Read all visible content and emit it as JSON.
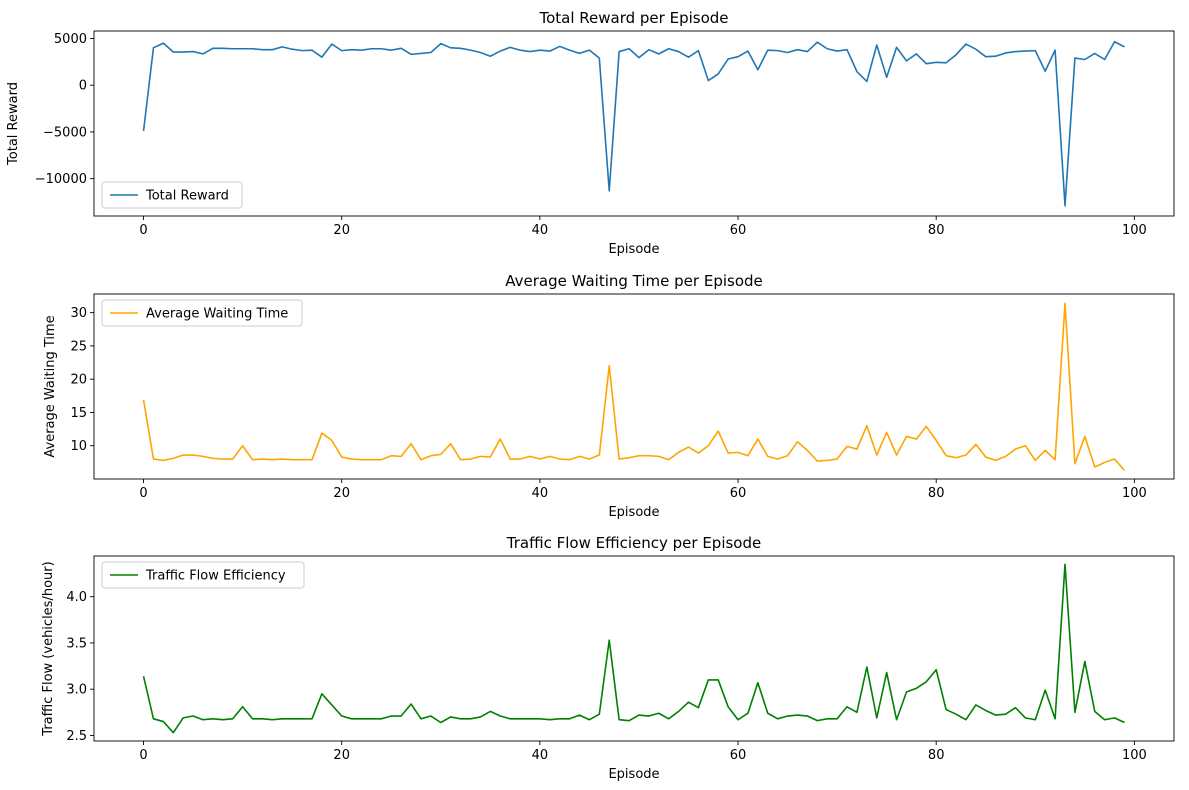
{
  "chart_data": [
    {
      "type": "line",
      "title": "Total Reward per Episode",
      "xlabel": "Episode",
      "ylabel": "Total Reward",
      "xlim": [
        -5,
        104
      ],
      "ylim": [
        -14000,
        5800
      ],
      "xticks": [
        0,
        20,
        40,
        60,
        80,
        100
      ],
      "xtick_labels": [
        "0",
        "20",
        "40",
        "60",
        "80",
        "100"
      ],
      "yticks": [
        -10000,
        -5000,
        0,
        5000
      ],
      "ytick_labels": [
        "−10000",
        "−5000",
        "0",
        "5000"
      ],
      "grid": false,
      "legend_position": "lower-left",
      "series": [
        {
          "name": "Total Reward",
          "color": "#1f77b4",
          "x": [
            0,
            1,
            2,
            3,
            4,
            5,
            6,
            7,
            8,
            9,
            10,
            11,
            12,
            13,
            14,
            15,
            16,
            17,
            18,
            19,
            20,
            21,
            22,
            23,
            24,
            25,
            26,
            27,
            28,
            29,
            30,
            31,
            32,
            33,
            34,
            35,
            36,
            37,
            38,
            39,
            40,
            41,
            42,
            43,
            44,
            45,
            46,
            47,
            48,
            49,
            50,
            51,
            52,
            53,
            54,
            55,
            56,
            57,
            58,
            59,
            60,
            61,
            62,
            63,
            64,
            65,
            66,
            67,
            68,
            69,
            70,
            71,
            72,
            73,
            74,
            75,
            76,
            77,
            78,
            79,
            80,
            81,
            82,
            83,
            84,
            85,
            86,
            87,
            88,
            89,
            90,
            91,
            92,
            93,
            94,
            95,
            96,
            97,
            98,
            99
          ],
          "values": [
            -4900,
            4000,
            4500,
            3550,
            3550,
            3600,
            3350,
            3950,
            3950,
            3900,
            3900,
            3900,
            3800,
            3800,
            4100,
            3850,
            3700,
            3750,
            3000,
            4400,
            3700,
            3800,
            3750,
            3900,
            3900,
            3750,
            3950,
            3300,
            3400,
            3500,
            4450,
            4000,
            3950,
            3750,
            3500,
            3100,
            3650,
            4050,
            3750,
            3600,
            3750,
            3650,
            4150,
            3750,
            3400,
            3750,
            2900,
            -11300,
            3600,
            3900,
            2950,
            3800,
            3350,
            3900,
            3600,
            3000,
            3700,
            500,
            1200,
            2800,
            3050,
            3650,
            1650,
            3750,
            3700,
            3500,
            3800,
            3600,
            4600,
            3900,
            3650,
            3800,
            1450,
            400,
            4300,
            850,
            4050,
            2600,
            3350,
            2300,
            2450,
            2400,
            3250,
            4400,
            3850,
            3050,
            3100,
            3450,
            3600,
            3650,
            3700,
            1500,
            3750,
            -12900,
            2900,
            2750,
            3400,
            2750,
            4650,
            4100
          ]
        }
      ]
    },
    {
      "type": "line",
      "title": "Average Waiting Time per Episode",
      "xlabel": "Episode",
      "ylabel": "Average Waiting Time",
      "xlim": [
        -5,
        104
      ],
      "ylim": [
        5.0,
        32.8
      ],
      "xticks": [
        0,
        20,
        40,
        60,
        80,
        100
      ],
      "xtick_labels": [
        "0",
        "20",
        "40",
        "60",
        "80",
        "100"
      ],
      "yticks": [
        10,
        15,
        20,
        25,
        30
      ],
      "ytick_labels": [
        "10",
        "15",
        "20",
        "25",
        "30"
      ],
      "grid": false,
      "legend_position": "upper-left",
      "series": [
        {
          "name": "Average Waiting Time",
          "color": "#ffa500",
          "x": [
            0,
            1,
            2,
            3,
            4,
            5,
            6,
            7,
            8,
            9,
            10,
            11,
            12,
            13,
            14,
            15,
            16,
            17,
            18,
            19,
            20,
            21,
            22,
            23,
            24,
            25,
            26,
            27,
            28,
            29,
            30,
            31,
            32,
            33,
            34,
            35,
            36,
            37,
            38,
            39,
            40,
            41,
            42,
            43,
            44,
            45,
            46,
            47,
            48,
            49,
            50,
            51,
            52,
            53,
            54,
            55,
            56,
            57,
            58,
            59,
            60,
            61,
            62,
            63,
            64,
            65,
            66,
            67,
            68,
            69,
            70,
            71,
            72,
            73,
            74,
            75,
            76,
            77,
            78,
            79,
            80,
            81,
            82,
            83,
            84,
            85,
            86,
            87,
            88,
            89,
            90,
            91,
            92,
            93,
            94,
            95,
            96,
            97,
            98,
            99
          ],
          "values": [
            16.9,
            8.0,
            7.8,
            8.1,
            8.6,
            8.6,
            8.4,
            8.1,
            8.0,
            8.0,
            10.0,
            7.9,
            8.0,
            7.9,
            8.0,
            7.9,
            7.9,
            7.9,
            11.9,
            10.8,
            8.3,
            8.0,
            7.9,
            7.9,
            7.9,
            8.5,
            8.4,
            10.3,
            7.9,
            8.5,
            8.7,
            10.3,
            7.9,
            8.0,
            8.4,
            8.3,
            11.0,
            8.0,
            8.0,
            8.4,
            8.0,
            8.4,
            8.0,
            7.9,
            8.4,
            8.0,
            8.6,
            22.0,
            8.0,
            8.2,
            8.5,
            8.5,
            8.4,
            7.9,
            9.0,
            9.8,
            8.9,
            10.0,
            12.2,
            8.9,
            9.0,
            8.5,
            11.0,
            8.4,
            8.0,
            8.5,
            10.6,
            9.3,
            7.7,
            7.8,
            8.0,
            9.9,
            9.5,
            13.0,
            8.6,
            12.0,
            8.6,
            11.4,
            11.0,
            12.9,
            10.8,
            8.5,
            8.2,
            8.6,
            10.2,
            8.3,
            7.8,
            8.4,
            9.5,
            10.0,
            7.8,
            9.3,
            7.9,
            31.4,
            7.3,
            11.4,
            6.8,
            7.5,
            8.0,
            6.3
          ]
        }
      ]
    },
    {
      "type": "line",
      "title": "Traffic Flow Efficiency per Episode",
      "xlabel": "Episode",
      "ylabel": "Traffic Flow (vehicles/hour)",
      "xlim": [
        -5,
        104
      ],
      "ylim": [
        2.44,
        4.44
      ],
      "xticks": [
        0,
        20,
        40,
        60,
        80,
        100
      ],
      "xtick_labels": [
        "0",
        "20",
        "40",
        "60",
        "80",
        "100"
      ],
      "yticks": [
        2.5,
        3.0,
        3.5,
        4.0
      ],
      "ytick_labels": [
        "2.5",
        "3.0",
        "3.5",
        "4.0"
      ],
      "grid": false,
      "legend_position": "upper-left",
      "series": [
        {
          "name": "Traffic Flow Efficiency",
          "color": "#008000",
          "x": [
            0,
            1,
            2,
            3,
            4,
            5,
            6,
            7,
            8,
            9,
            10,
            11,
            12,
            13,
            14,
            15,
            16,
            17,
            18,
            19,
            20,
            21,
            22,
            23,
            24,
            25,
            26,
            27,
            28,
            29,
            30,
            31,
            32,
            33,
            34,
            35,
            36,
            37,
            38,
            39,
            40,
            41,
            42,
            43,
            44,
            45,
            46,
            47,
            48,
            49,
            50,
            51,
            52,
            53,
            54,
            55,
            56,
            57,
            58,
            59,
            60,
            61,
            62,
            63,
            64,
            65,
            66,
            67,
            68,
            69,
            70,
            71,
            72,
            73,
            74,
            75,
            76,
            77,
            78,
            79,
            80,
            81,
            82,
            83,
            84,
            85,
            86,
            87,
            88,
            89,
            90,
            91,
            92,
            93,
            94,
            95,
            96,
            97,
            98,
            99
          ],
          "values": [
            3.14,
            2.68,
            2.65,
            2.53,
            2.69,
            2.71,
            2.67,
            2.68,
            2.67,
            2.68,
            2.81,
            2.68,
            2.68,
            2.67,
            2.68,
            2.68,
            2.68,
            2.68,
            2.95,
            2.83,
            2.71,
            2.68,
            2.68,
            2.68,
            2.68,
            2.71,
            2.71,
            2.84,
            2.68,
            2.71,
            2.64,
            2.7,
            2.68,
            2.68,
            2.7,
            2.76,
            2.71,
            2.68,
            2.68,
            2.68,
            2.68,
            2.67,
            2.68,
            2.68,
            2.72,
            2.67,
            2.73,
            3.53,
            2.67,
            2.66,
            2.72,
            2.71,
            2.74,
            2.68,
            2.76,
            2.86,
            2.8,
            3.1,
            3.1,
            2.81,
            2.67,
            2.74,
            3.07,
            2.74,
            2.68,
            2.71,
            2.72,
            2.71,
            2.66,
            2.68,
            2.68,
            2.81,
            2.75,
            3.24,
            2.69,
            3.18,
            2.67,
            2.97,
            3.01,
            3.08,
            3.21,
            2.78,
            2.73,
            2.67,
            2.83,
            2.77,
            2.72,
            2.73,
            2.8,
            2.69,
            2.67,
            2.99,
            2.68,
            4.35,
            2.75,
            3.3,
            2.76,
            2.67,
            2.69,
            2.64
          ]
        }
      ]
    }
  ]
}
